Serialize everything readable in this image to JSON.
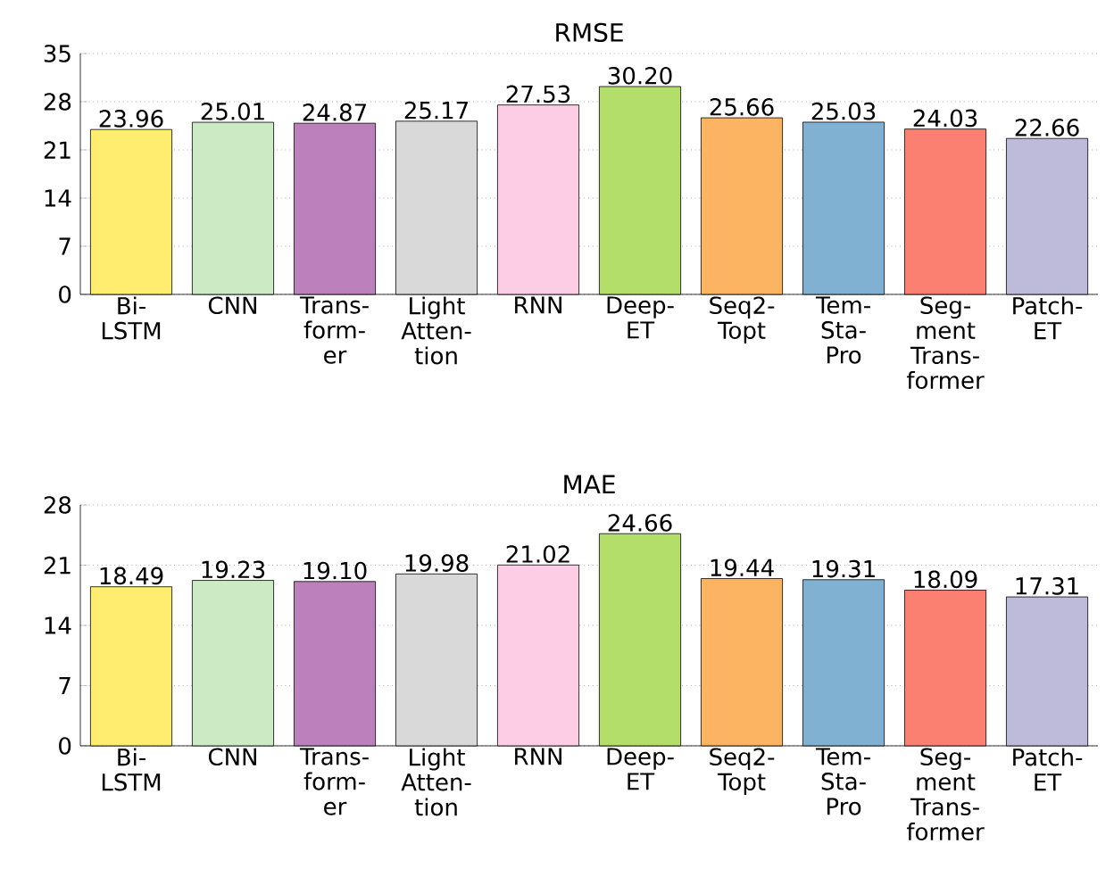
{
  "chart_data": [
    {
      "type": "bar",
      "title": "RMSE",
      "categories": [
        "Bi- LSTM",
        "CNN",
        "Trans- form- er",
        "Light Atten- tion",
        "RNN",
        "Deep- ET",
        "Seq2- Topt",
        "Tem- Sta- Pro",
        "Seg- ment Trans- former",
        "Patch- ET"
      ],
      "values": [
        23.96,
        25.01,
        24.87,
        25.17,
        27.53,
        30.2,
        25.66,
        25.03,
        24.03,
        22.66
      ],
      "colors": [
        "#ffed6f",
        "#ccebc5",
        "#bc80bd",
        "#d9d9d9",
        "#fccde5",
        "#b3de69",
        "#fdb462",
        "#80b1d3",
        "#fb8072",
        "#bebada"
      ],
      "value_labels": [
        "23.96",
        "25.01",
        "24.87",
        "25.17",
        "27.53",
        "30.20",
        "25.66",
        "25.03",
        "24.03",
        "22.66"
      ],
      "ylim": [
        0,
        35
      ],
      "yticks": [
        0,
        7,
        14,
        21,
        28,
        35
      ],
      "grid": "y"
    },
    {
      "type": "bar",
      "title": "MAE",
      "categories": [
        "Bi- LSTM",
        "CNN",
        "Trans- form- er",
        "Light Atten- tion",
        "RNN",
        "Deep- ET",
        "Seq2- Topt",
        "Tem- Sta- Pro",
        "Seg- ment Trans- former",
        "Patch- ET"
      ],
      "values": [
        18.49,
        19.23,
        19.1,
        19.98,
        21.02,
        24.66,
        19.44,
        19.31,
        18.09,
        17.31
      ],
      "colors": [
        "#ffed6f",
        "#ccebc5",
        "#bc80bd",
        "#d9d9d9",
        "#fccde5",
        "#b3de69",
        "#fdb462",
        "#80b1d3",
        "#fb8072",
        "#bebada"
      ],
      "value_labels": [
        "18.49",
        "19.23",
        "19.10",
        "19.98",
        "21.02",
        "24.66",
        "19.44",
        "19.31",
        "18.09",
        "17.31"
      ],
      "ylim": [
        0,
        28
      ],
      "yticks": [
        0,
        7,
        14,
        21,
        28
      ],
      "grid": "y"
    }
  ]
}
